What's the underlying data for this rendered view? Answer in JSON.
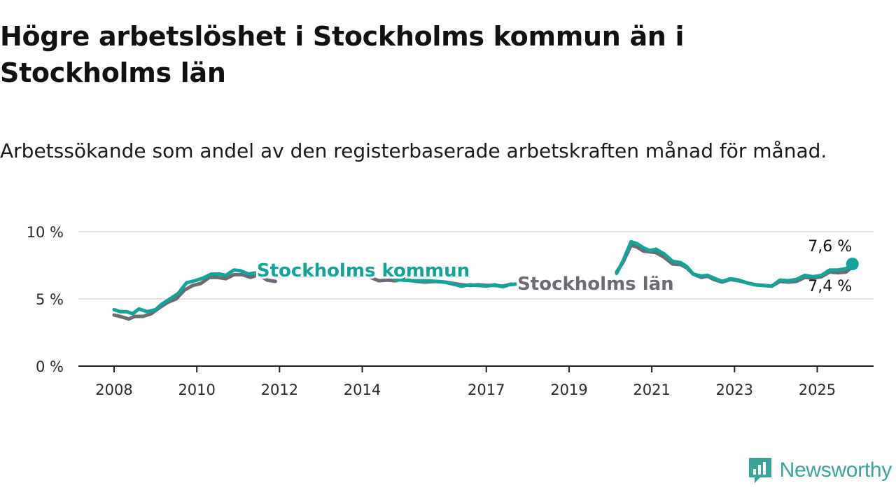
{
  "header": {
    "title": "Högre arbetslöshet i Stockholms kommun än i Stockholms län",
    "subtitle": "Arbetssökande som andel av den registerbaserade arbetskraften månad för månad."
  },
  "brand": {
    "name": "Newsworthy",
    "color": "#3aa39a"
  },
  "chart_data": {
    "type": "line",
    "title": "Högre arbetslöshet i Stockholms kommun än i Stockholms län",
    "subtitle": "Arbetssökande som andel av den registerbaserade arbetskraften månad för månad.",
    "xlim": [
      2008,
      2025.9
    ],
    "ylim": [
      0,
      10
    ],
    "x_ticks": [
      {
        "value": 2008,
        "label": "2008"
      },
      {
        "value": 2010,
        "label": "2010"
      },
      {
        "value": 2012,
        "label": "2012"
      },
      {
        "value": 2014,
        "label": "2014"
      },
      {
        "value": 2017,
        "label": "2017"
      },
      {
        "value": 2019,
        "label": "2019"
      },
      {
        "value": 2021,
        "label": "2021"
      },
      {
        "value": 2023,
        "label": "2023"
      },
      {
        "value": 2025,
        "label": "2025"
      }
    ],
    "y_ticks": [
      {
        "value": 0,
        "label": "0 %"
      },
      {
        "value": 5,
        "label": "5 %"
      },
      {
        "value": 10,
        "label": "10 %"
      }
    ],
    "grid": true,
    "legend": "direct labels",
    "series": [
      {
        "name": "Stockholms län",
        "color": "#6b6b73",
        "end_label": "7,4 %",
        "segments": [
          [
            [
              2008.0,
              3.8
            ],
            [
              2008.2,
              3.65
            ],
            [
              2008.35,
              3.5
            ],
            [
              2008.5,
              3.7
            ],
            [
              2008.7,
              3.7
            ],
            [
              2008.9,
              3.9
            ],
            [
              2009.1,
              4.35
            ],
            [
              2009.3,
              4.75
            ],
            [
              2009.5,
              5.0
            ],
            [
              2009.7,
              5.65
            ],
            [
              2009.9,
              6.0
            ],
            [
              2010.1,
              6.15
            ],
            [
              2010.3,
              6.6
            ],
            [
              2010.5,
              6.6
            ],
            [
              2010.7,
              6.5
            ],
            [
              2010.9,
              6.8
            ],
            [
              2011.1,
              6.8
            ],
            [
              2011.3,
              6.6
            ],
            [
              2011.5,
              6.8
            ],
            [
              2011.7,
              6.4
            ],
            [
              2011.9,
              6.3
            ]
          ],
          [
            [
              2014.2,
              6.6
            ],
            [
              2014.4,
              6.35
            ],
            [
              2014.6,
              6.4
            ],
            [
              2014.8,
              6.35
            ],
            [
              2015.0,
              6.5
            ],
            [
              2015.2,
              6.35
            ],
            [
              2015.5,
              6.25
            ],
            [
              2015.8,
              6.3
            ],
            [
              2016.0,
              6.25
            ],
            [
              2016.2,
              6.15
            ],
            [
              2016.4,
              6.05
            ],
            [
              2016.6,
              6.0
            ],
            [
              2016.8,
              6.05
            ],
            [
              2017.0,
              6.0
            ],
            [
              2017.2,
              6.0
            ],
            [
              2017.4,
              5.95
            ],
            [
              2017.6,
              6.1
            ]
          ],
          [
            [
              2020.15,
              7.0
            ],
            [
              2020.3,
              7.7
            ],
            [
              2020.5,
              9.0
            ],
            [
              2020.65,
              8.85
            ],
            [
              2020.8,
              8.55
            ],
            [
              2020.95,
              8.5
            ],
            [
              2021.1,
              8.45
            ],
            [
              2021.3,
              8.1
            ],
            [
              2021.5,
              7.6
            ],
            [
              2021.7,
              7.55
            ],
            [
              2021.85,
              7.3
            ],
            [
              2022.0,
              6.85
            ],
            [
              2022.2,
              6.6
            ],
            [
              2022.35,
              6.7
            ],
            [
              2022.5,
              6.45
            ],
            [
              2022.7,
              6.25
            ],
            [
              2022.9,
              6.45
            ],
            [
              2023.1,
              6.35
            ],
            [
              2023.3,
              6.2
            ],
            [
              2023.5,
              6.05
            ],
            [
              2023.7,
              6.0
            ],
            [
              2023.9,
              5.95
            ],
            [
              2024.1,
              6.3
            ],
            [
              2024.3,
              6.25
            ],
            [
              2024.5,
              6.3
            ],
            [
              2024.7,
              6.6
            ],
            [
              2024.9,
              6.55
            ],
            [
              2025.1,
              6.65
            ],
            [
              2025.3,
              7.0
            ],
            [
              2025.5,
              6.95
            ],
            [
              2025.7,
              7.0
            ],
            [
              2025.85,
              7.4
            ]
          ]
        ]
      },
      {
        "name": "Stockholms kommun",
        "color": "#12a39a",
        "end_label": "7,6 %",
        "segments": [
          [
            [
              2008.0,
              4.2
            ],
            [
              2008.15,
              4.05
            ],
            [
              2008.3,
              4.05
            ],
            [
              2008.45,
              3.9
            ],
            [
              2008.6,
              4.25
            ],
            [
              2008.8,
              4.05
            ],
            [
              2009.0,
              4.2
            ],
            [
              2009.15,
              4.6
            ],
            [
              2009.35,
              5.0
            ],
            [
              2009.55,
              5.4
            ],
            [
              2009.75,
              6.2
            ],
            [
              2009.95,
              6.35
            ],
            [
              2010.15,
              6.55
            ],
            [
              2010.35,
              6.85
            ],
            [
              2010.55,
              6.85
            ],
            [
              2010.7,
              6.75
            ],
            [
              2010.9,
              7.15
            ],
            [
              2011.05,
              7.1
            ],
            [
              2011.25,
              6.85
            ],
            [
              2011.45,
              6.95
            ]
          ],
          [
            [
              2014.8,
              6.45
            ],
            [
              2015.2,
              6.35
            ],
            [
              2015.6,
              6.35
            ],
            [
              2016.0,
              6.25
            ],
            [
              2016.2,
              6.1
            ],
            [
              2016.4,
              5.95
            ],
            [
              2016.6,
              6.05
            ],
            [
              2016.8,
              6.0
            ],
            [
              2017.0,
              5.95
            ],
            [
              2017.2,
              6.05
            ],
            [
              2017.4,
              5.9
            ],
            [
              2017.55,
              6.05
            ],
            [
              2017.7,
              6.1
            ]
          ],
          [
            [
              2020.15,
              6.9
            ],
            [
              2020.3,
              7.8
            ],
            [
              2020.5,
              9.25
            ],
            [
              2020.65,
              9.1
            ],
            [
              2020.8,
              8.8
            ],
            [
              2020.95,
              8.6
            ],
            [
              2021.1,
              8.7
            ],
            [
              2021.3,
              8.35
            ],
            [
              2021.5,
              7.8
            ],
            [
              2021.7,
              7.7
            ],
            [
              2021.85,
              7.4
            ],
            [
              2022.0,
              6.85
            ],
            [
              2022.2,
              6.7
            ],
            [
              2022.35,
              6.75
            ],
            [
              2022.5,
              6.55
            ],
            [
              2022.7,
              6.3
            ],
            [
              2022.9,
              6.5
            ],
            [
              2023.1,
              6.4
            ],
            [
              2023.3,
              6.2
            ],
            [
              2023.5,
              6.05
            ],
            [
              2023.7,
              6.0
            ],
            [
              2023.9,
              5.95
            ],
            [
              2024.1,
              6.4
            ],
            [
              2024.3,
              6.35
            ],
            [
              2024.5,
              6.45
            ],
            [
              2024.7,
              6.75
            ],
            [
              2024.9,
              6.65
            ],
            [
              2025.1,
              6.75
            ],
            [
              2025.3,
              7.15
            ],
            [
              2025.5,
              7.15
            ],
            [
              2025.7,
              7.25
            ],
            [
              2025.85,
              7.6
            ]
          ]
        ]
      }
    ]
  }
}
